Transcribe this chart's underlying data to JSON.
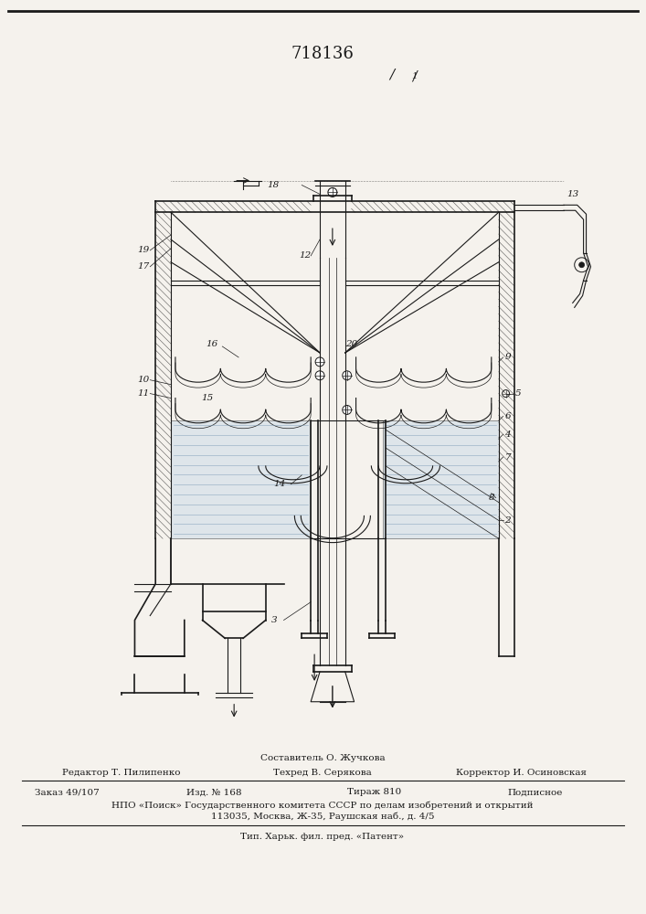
{
  "patent_number": "718136",
  "bg_color": "#f5f2ed",
  "line_color": "#1a1a1a",
  "footer": {
    "sostavitel": "Составитель О. Жучкова",
    "redaktor": "Редактор Т. Пилипенко",
    "tekhred": "Техред В. Серякова",
    "korrektor": "Корректор И. Осиновская",
    "zakaz": "Заказ 49/107",
    "izd": "Изд. № 168",
    "tirazh": "Тираж 810",
    "podpisnoe": "Подписное",
    "npo": "НПО «Поиск» Государственного комитета СССР по делам изобретений и открытий",
    "address": "113035, Москва, Ж-35, Раушская наб., д. 4/5",
    "tip": "Тип. Харьк. фил. пред. «Патент»"
  }
}
